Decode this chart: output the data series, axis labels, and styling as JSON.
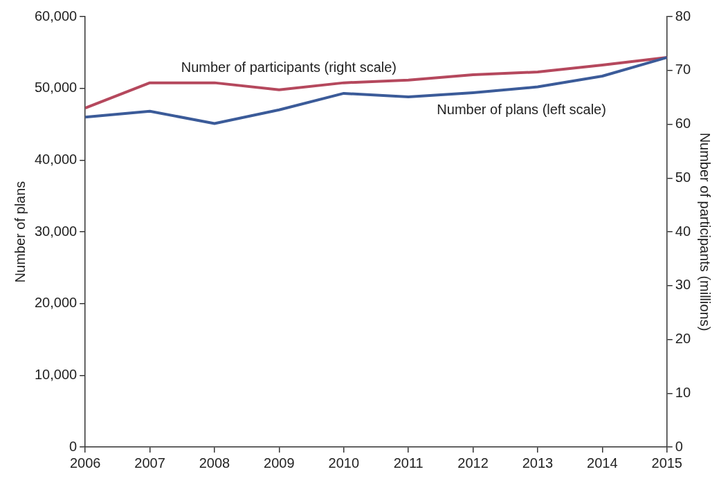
{
  "chart_data": {
    "type": "line",
    "x": [
      2006,
      2007,
      2008,
      2009,
      2010,
      2011,
      2012,
      2013,
      2014,
      2015
    ],
    "xlim": [
      2006,
      2015
    ],
    "xticks": [
      2006,
      2007,
      2008,
      2009,
      2010,
      2011,
      2012,
      2013,
      2014,
      2015
    ],
    "ylim": [
      0,
      60000
    ],
    "yticks": [
      {
        "value": 0,
        "label": "0"
      },
      {
        "value": 10000,
        "label": "10,000"
      },
      {
        "value": 20000,
        "label": "20,000"
      },
      {
        "value": 30000,
        "label": "30,000"
      },
      {
        "value": 40000,
        "label": "40,000"
      },
      {
        "value": 50000,
        "label": "50,000"
      },
      {
        "value": 60000,
        "label": "60,000"
      }
    ],
    "y2lim": [
      0,
      80
    ],
    "y2ticks": [
      0,
      10,
      20,
      30,
      40,
      50,
      60,
      70,
      80
    ],
    "ylabel": "Number of plans",
    "y2label": "Number of participants (millions)",
    "series": [
      {
        "name": "Number of plans (left scale)",
        "color": "#3b5b99",
        "values": [
          46000,
          46800,
          45100,
          47000,
          49300,
          48800,
          49400,
          50200,
          51700,
          54300
        ]
      },
      {
        "name": "Number of participants (right scale)",
        "color": "#b5485d",
        "axis": "y2",
        "values": [
          63.0,
          67.7,
          67.7,
          66.4,
          67.7,
          68.2,
          69.2,
          69.7,
          71.0,
          72.4
        ]
      }
    ],
    "grid": false,
    "legend": false,
    "marker": "none",
    "line_style": "solid"
  }
}
